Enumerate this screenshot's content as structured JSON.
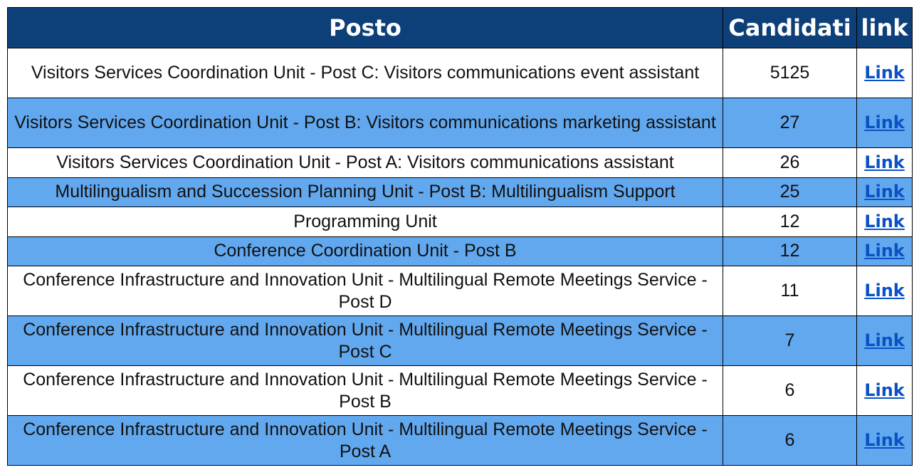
{
  "header": {
    "posto": "Posto",
    "candidati": "Candidati",
    "link": "link"
  },
  "rows": [
    {
      "posto": "Visitors Services Coordination Unit - Post C: Visitors communications event assistant",
      "candidati": "5125",
      "link": "Link"
    },
    {
      "posto": "Visitors Services Coordination Unit - Post B: Visitors communications marketing assistant",
      "candidati": "27",
      "link": "Link"
    },
    {
      "posto": "Visitors Services Coordination Unit - Post A: Visitors communications assistant",
      "candidati": "26",
      "link": "Link"
    },
    {
      "posto": "Multilingualism and Succession Planning Unit - Post B: Multilingualism Support",
      "candidati": "25",
      "link": "Link"
    },
    {
      "posto": "Programming Unit",
      "candidati": "12",
      "link": "Link"
    },
    {
      "posto": "Conference Coordination Unit - Post B",
      "candidati": "12",
      "link": "Link"
    },
    {
      "posto": "Conference Infrastructure and Innovation Unit - Multilingual Remote Meetings Service - Post D",
      "candidati": "11",
      "link": "Link"
    },
    {
      "posto": "Conference Infrastructure and Innovation Unit - Multilingual Remote Meetings Service - Post C",
      "candidati": "7",
      "link": "Link"
    },
    {
      "posto": "Conference Infrastructure and Innovation Unit - Multilingual Remote Meetings Service - Post B",
      "candidati": "6",
      "link": "Link"
    },
    {
      "posto": "Conference Infrastructure and Innovation Unit - Multilingual Remote Meetings Service - Post A",
      "candidati": "6",
      "link": "Link"
    }
  ]
}
